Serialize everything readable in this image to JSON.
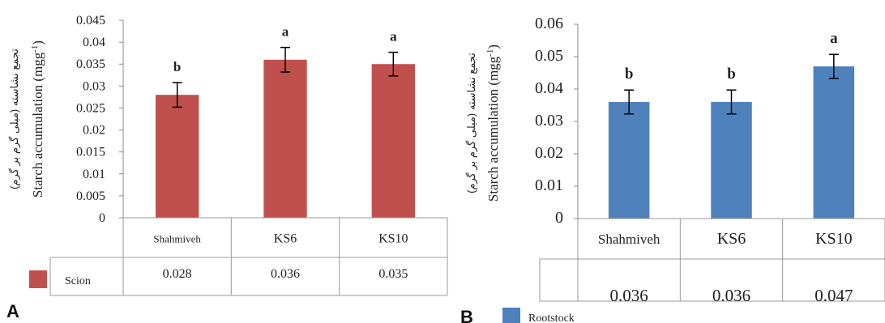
{
  "chart_data": [
    {
      "type": "bar",
      "panel_label": "A",
      "ylabel_fa": "تجمع نشاسته (میلی گرم بر گرم)",
      "ylabel_en": "Starch accumulation (mgg",
      "ylabel_sup": "-1",
      "ylabel_close": ")",
      "ylim": [
        0,
        0.045
      ],
      "yticks": [
        "0",
        "0.005",
        "0.01",
        "0.015",
        "0.02",
        "0.025",
        "0.03",
        "0.035",
        "0.04",
        "0.045"
      ],
      "categories": [
        "Shahmiveh",
        "KS6",
        "KS10"
      ],
      "series": [
        {
          "name": "Scion",
          "values": [
            0.028,
            0.036,
            0.035
          ],
          "color": "#c0504d"
        }
      ],
      "errors": [
        0.0028,
        0.0028,
        0.0027
      ],
      "letters": [
        "b",
        "a",
        "a"
      ],
      "table_values": [
        "0.028",
        "0.036",
        "0.035"
      ],
      "grid": false
    },
    {
      "type": "bar",
      "panel_label": "B",
      "ylabel_fa": "تجمع نشاسته (میلی گرم بر گرم)",
      "ylabel_en": "Starch accumulation (mgg",
      "ylabel_sup": "-1",
      "ylabel_close": ")",
      "ylim": [
        0,
        0.06
      ],
      "yticks": [
        "0",
        "0.01",
        "0.02",
        "0.03",
        "0.04",
        "0.05",
        "0.06"
      ],
      "categories": [
        "Shahmiveh",
        "KS6",
        "KS10"
      ],
      "series": [
        {
          "name": "Rootstock",
          "values": [
            0.036,
            0.036,
            0.047
          ],
          "color": "#4f81bd"
        }
      ],
      "errors": [
        0.0037,
        0.0037,
        0.0037
      ],
      "letters": [
        "b",
        "b",
        "a"
      ],
      "table_values": [
        "0.036",
        "0.036",
        "0.047"
      ],
      "grid": false
    }
  ]
}
